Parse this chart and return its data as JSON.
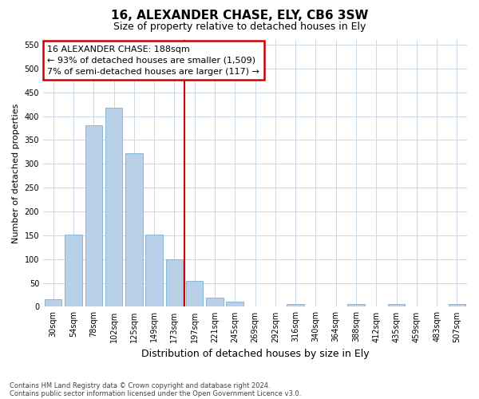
{
  "title": "16, ALEXANDER CHASE, ELY, CB6 3SW",
  "subtitle": "Size of property relative to detached houses in Ely",
  "xlabel": "Distribution of detached houses by size in Ely",
  "ylabel": "Number of detached properties",
  "categories": [
    "30sqm",
    "54sqm",
    "78sqm",
    "102sqm",
    "125sqm",
    "149sqm",
    "173sqm",
    "197sqm",
    "221sqm",
    "245sqm",
    "269sqm",
    "292sqm",
    "316sqm",
    "340sqm",
    "364sqm",
    "388sqm",
    "412sqm",
    "435sqm",
    "459sqm",
    "483sqm",
    "507sqm"
  ],
  "values": [
    15,
    152,
    381,
    417,
    323,
    152,
    100,
    55,
    19,
    11,
    0,
    0,
    5,
    0,
    0,
    5,
    0,
    5,
    0,
    0,
    5
  ],
  "bar_color": "#b8d0e8",
  "bar_edge_color": "#7aafd4",
  "vline_color": "#cc0000",
  "vline_x_index": 7,
  "annotation_title": "16 ALEXANDER CHASE: 188sqm",
  "annotation_line1": "← 93% of detached houses are smaller (1,509)",
  "annotation_line2": "7% of semi-detached houses are larger (117) →",
  "annotation_box_edgecolor": "#cc0000",
  "ylim": [
    0,
    560
  ],
  "yticks": [
    0,
    50,
    100,
    150,
    200,
    250,
    300,
    350,
    400,
    450,
    500,
    550
  ],
  "footnote1": "Contains HM Land Registry data © Crown copyright and database right 2024.",
  "footnote2": "Contains public sector information licensed under the Open Government Licence v3.0.",
  "background_color": "#ffffff",
  "grid_color": "#c8d8e8",
  "title_fontsize": 11,
  "subtitle_fontsize": 9,
  "ylabel_fontsize": 8,
  "xlabel_fontsize": 9,
  "tick_fontsize": 7,
  "footnote_fontsize": 6,
  "annotation_fontsize": 8
}
